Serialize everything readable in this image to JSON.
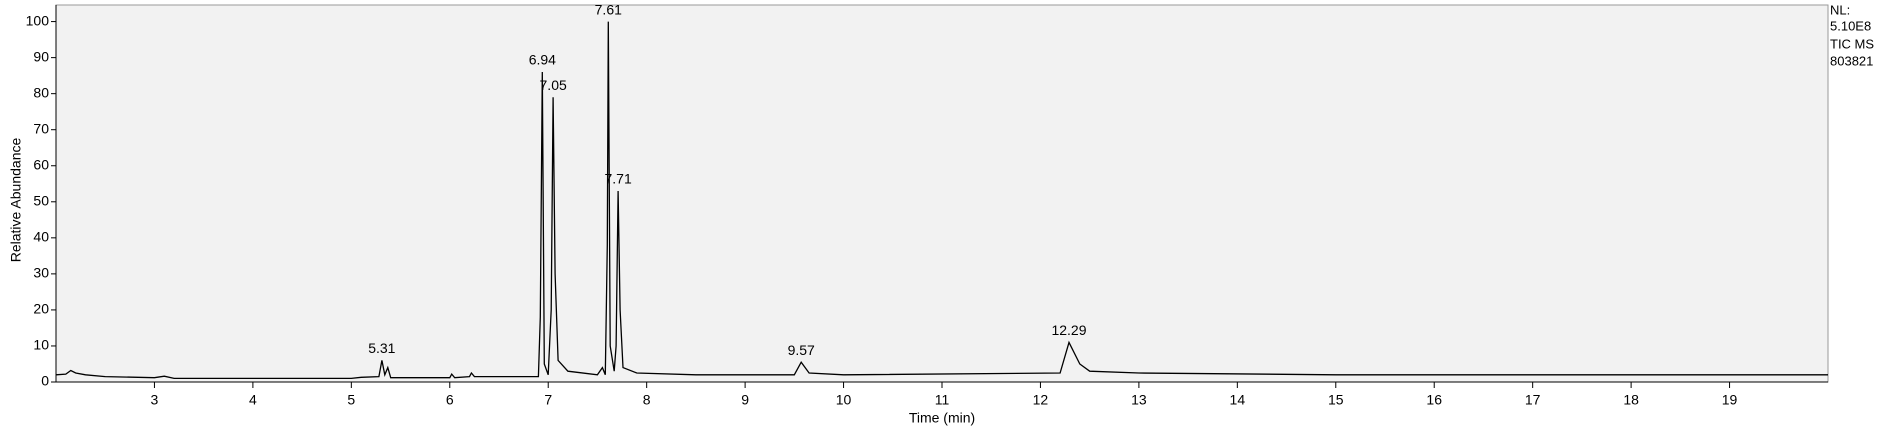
{
  "chart_data": {
    "type": "line",
    "x_label": "Time (min)",
    "y_label": "Relative Abundance",
    "xlim": [
      2,
      20
    ],
    "xticks": [
      3,
      4,
      5,
      6,
      7,
      8,
      9,
      10,
      11,
      12,
      13,
      14,
      15,
      16,
      17,
      18,
      19
    ],
    "ylim": [
      0,
      104.6
    ],
    "yticks": [
      0,
      10,
      20,
      30,
      40,
      50,
      60,
      70,
      80,
      90,
      100
    ],
    "x": [
      2.0,
      2.1,
      2.15,
      2.2,
      2.3,
      2.5,
      3.0,
      3.1,
      3.2,
      4.0,
      5.0,
      5.1,
      5.28,
      5.31,
      5.34,
      5.37,
      5.4,
      6.0,
      6.02,
      6.05,
      6.2,
      6.22,
      6.25,
      6.9,
      6.92,
      6.94,
      6.96,
      7.0,
      7.03,
      7.05,
      7.07,
      7.1,
      7.2,
      7.5,
      7.55,
      7.58,
      7.6,
      7.61,
      7.63,
      7.67,
      7.69,
      7.71,
      7.73,
      7.76,
      7.9,
      8.5,
      9.5,
      9.57,
      9.65,
      10.0,
      12.2,
      12.29,
      12.4,
      12.5,
      13.0,
      15.0,
      20.0
    ],
    "series": [
      {
        "name": "TIC",
        "color": "#000000",
        "values": [
          2.0,
          2.2,
          3.2,
          2.5,
          2.0,
          1.5,
          1.2,
          1.6,
          1.0,
          1.0,
          1.0,
          1.3,
          1.5,
          6.0,
          2.0,
          4.0,
          1.2,
          1.2,
          2.2,
          1.2,
          1.5,
          2.5,
          1.5,
          1.5,
          18.0,
          86.0,
          5.0,
          2.0,
          20.0,
          79.0,
          30.0,
          6.0,
          3.0,
          2.0,
          4.0,
          2.0,
          38.0,
          100.0,
          10.0,
          3.0,
          10.0,
          53.0,
          20.0,
          4.0,
          2.5,
          2.0,
          2.0,
          5.5,
          2.5,
          2.0,
          2.5,
          11.0,
          5.0,
          3.0,
          2.5,
          2.0,
          2.0
        ]
      }
    ],
    "peaks": {
      "x": [
        5.31,
        6.94,
        7.05,
        7.61,
        7.71,
        9.57,
        12.29
      ],
      "y": [
        6,
        86,
        79,
        100,
        53,
        5.5,
        11
      ]
    },
    "info": [
      "NL:",
      "5.10E8",
      "TIC  MS",
      "803821"
    ]
  }
}
